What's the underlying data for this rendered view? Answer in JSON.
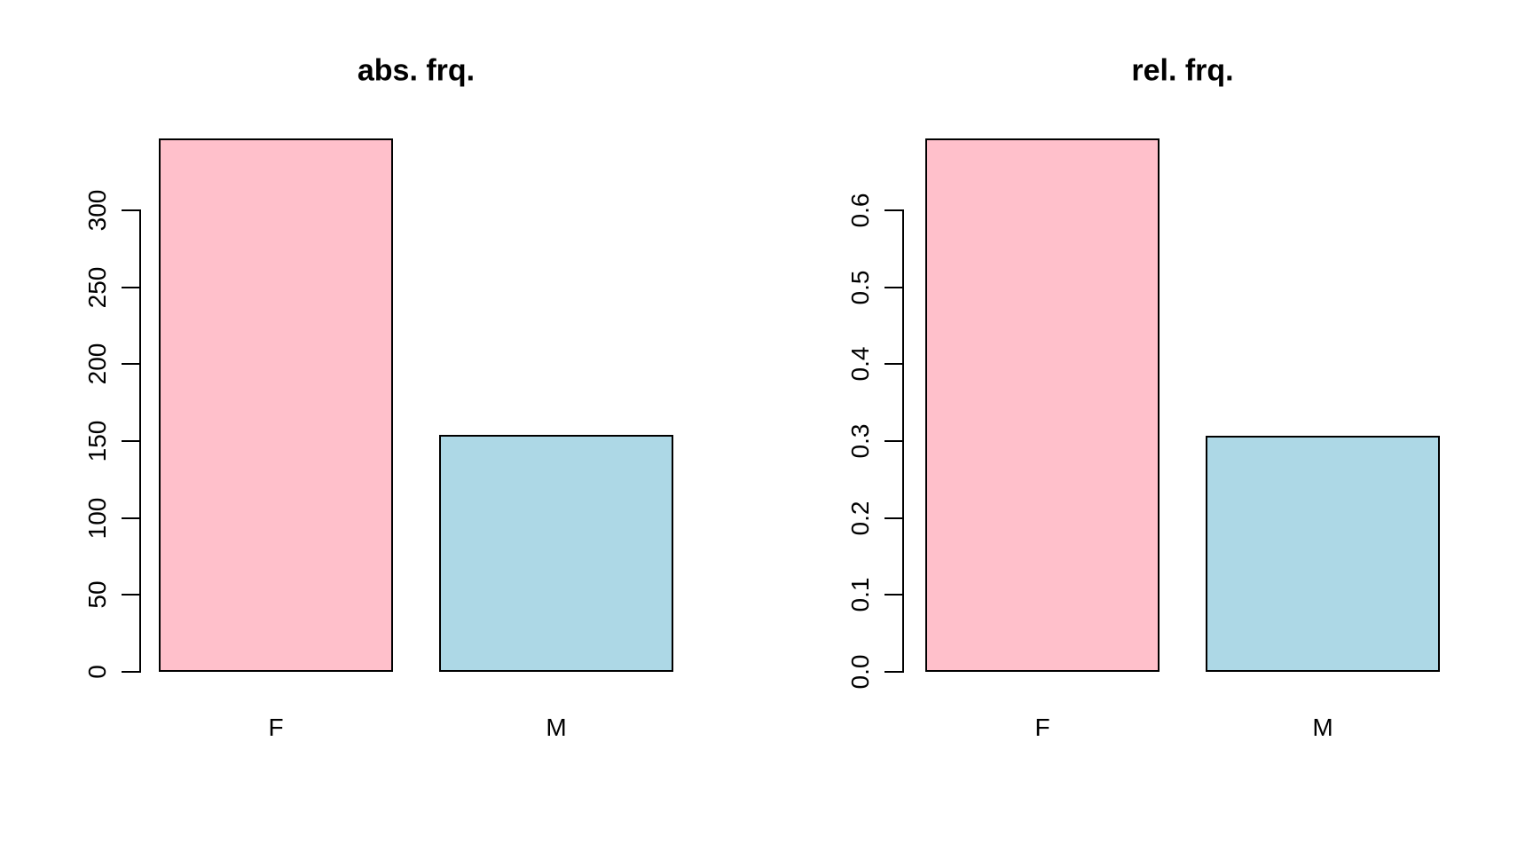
{
  "figure": {
    "background": "#ffffff",
    "axis_color": "#000000",
    "text_color": "#000000"
  },
  "chart_data": [
    {
      "type": "bar",
      "title": "abs. frq.",
      "categories": [
        "F",
        "M"
      ],
      "values": [
        347,
        154
      ],
      "bar_colors": [
        "#FFC0CB",
        "#ADD8E6"
      ],
      "bar_border_color": "#000000",
      "xlabel": "",
      "ylabel": "",
      "ylim": [
        0,
        300
      ],
      "yticks": [
        0,
        50,
        100,
        150,
        200,
        250,
        300
      ],
      "ytick_labels": [
        "0",
        "50",
        "100",
        "150",
        "200",
        "250",
        "300"
      ],
      "grid": false,
      "legend": "none"
    },
    {
      "type": "bar",
      "title": "rel. frq.",
      "categories": [
        "F",
        "M"
      ],
      "values": [
        0.693,
        0.307
      ],
      "bar_colors": [
        "#FFC0CB",
        "#ADD8E6"
      ],
      "bar_border_color": "#000000",
      "xlabel": "",
      "ylabel": "",
      "ylim": [
        0,
        0.6
      ],
      "yticks": [
        0.0,
        0.1,
        0.2,
        0.3,
        0.4,
        0.5,
        0.6
      ],
      "ytick_labels": [
        "0.0",
        "0.1",
        "0.2",
        "0.3",
        "0.4",
        "0.5",
        "0.6"
      ],
      "grid": false,
      "legend": "none"
    }
  ]
}
